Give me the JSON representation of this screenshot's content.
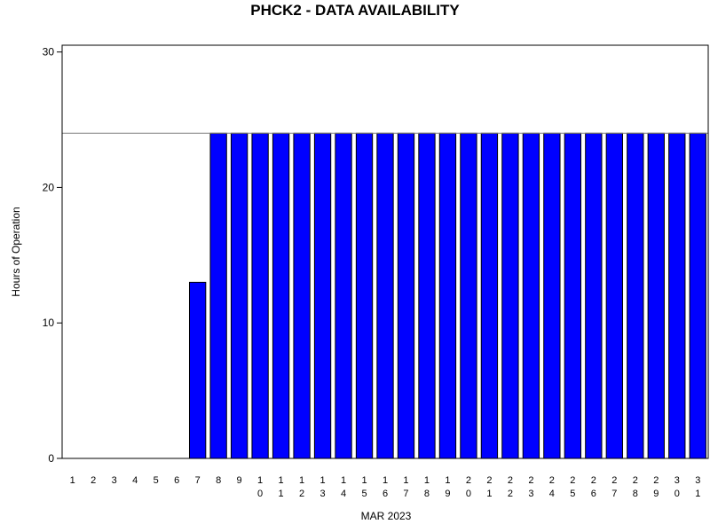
{
  "chart_data": {
    "type": "bar",
    "title": "PHCK2 - DATA AVAILABILITY",
    "xlabel": "MAR 2023",
    "ylabel": "Hours of Operation",
    "ylim": [
      0,
      30.5
    ],
    "yticks": [
      0,
      10,
      20,
      30
    ],
    "reference_line": 24,
    "grid": false,
    "categories": [
      "1",
      "2",
      "3",
      "4",
      "5",
      "6",
      "7",
      "8",
      "9",
      "10",
      "11",
      "12",
      "13",
      "14",
      "15",
      "16",
      "17",
      "18",
      "19",
      "20",
      "21",
      "22",
      "23",
      "24",
      "25",
      "26",
      "27",
      "28",
      "29",
      "30",
      "31"
    ],
    "values": [
      0,
      0,
      0,
      0,
      0,
      0,
      13,
      24,
      24,
      24,
      24,
      24,
      24,
      24,
      24,
      24,
      24,
      24,
      24,
      24,
      24,
      24,
      24,
      24,
      24,
      24,
      24,
      24,
      24,
      24,
      24
    ],
    "colors": {
      "bar_fill": "#0000ff",
      "bar_stroke": "#000000",
      "reference_line": "#808080"
    }
  }
}
